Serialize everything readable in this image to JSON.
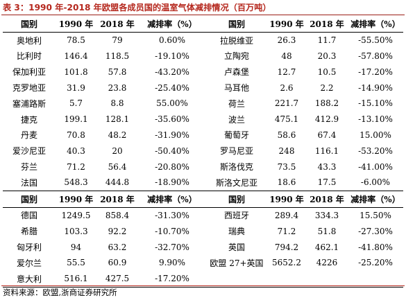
{
  "title": "表 3：1990 年-2018 年欧盟各成员国的温室气体减排情况（百万吨）",
  "headers": [
    "国别",
    "1990 年",
    "2018 年",
    "减排率（%）"
  ],
  "rows": [
    {
      "left": [
        "奥地利",
        "78.5",
        "79",
        "0.60%"
      ],
      "right": [
        "拉脱维亚",
        "26.3",
        "11.7",
        "-55.50%"
      ]
    },
    {
      "left": [
        "比利时",
        "146.4",
        "118.5",
        "-19.10%"
      ],
      "right": [
        "立陶宛",
        "48",
        "20.3",
        "-57.80%"
      ]
    },
    {
      "left": [
        "保加利亚",
        "101.8",
        "57.8",
        "-43.20%"
      ],
      "right": [
        "卢森堡",
        "12.7",
        "10.5",
        "-17.20%"
      ]
    },
    {
      "left": [
        "克罗地亚",
        "31.9",
        "23.8",
        "-25.40%"
      ],
      "right": [
        "马耳他",
        "2.6",
        "2.2",
        "-14.90%"
      ]
    },
    {
      "left": [
        "塞浦路斯",
        "5.7",
        "8.8",
        "55.00%"
      ],
      "right": [
        "荷兰",
        "221.7",
        "188.2",
        "-15.10%"
      ]
    },
    {
      "left": [
        "捷克",
        "199.1",
        "128.1",
        "-35.60%"
      ],
      "right": [
        "波兰",
        "475.1",
        "412.9",
        "-13.10%"
      ]
    },
    {
      "left": [
        "丹麦",
        "70.8",
        "48.2",
        "-31.90%"
      ],
      "right": [
        "葡萄牙",
        "58.6",
        "67.4",
        "15.00%"
      ]
    },
    {
      "left": [
        "爱沙尼亚",
        "40.3",
        "20",
        "-50.40%"
      ],
      "right": [
        "罗马尼亚",
        "248",
        "116.1",
        "-53.20%"
      ]
    },
    {
      "left": [
        "芬兰",
        "71.2",
        "56.4",
        "-20.80%"
      ],
      "right": [
        "斯洛伐克",
        "73.5",
        "43.3",
        "-41.00%"
      ]
    },
    {
      "left": [
        "法国",
        "548.3",
        "444.8",
        "-18.90%"
      ],
      "right": [
        "斯洛文尼亚",
        "18.6",
        "17.5",
        "-6.00%"
      ]
    },
    {
      "subhead": true
    },
    {
      "left": [
        "德国",
        "1249.5",
        "858.4",
        "-31.30%"
      ],
      "right": [
        "西班牙",
        "289.4",
        "334.3",
        "15.50%"
      ]
    },
    {
      "left": [
        "希腊",
        "103.3",
        "92.2",
        "-10.70%"
      ],
      "right": [
        "瑞典",
        "71.2",
        "51.8",
        "-27.30%"
      ]
    },
    {
      "left": [
        "匈牙利",
        "94",
        "63.2",
        "-32.70%"
      ],
      "right": [
        "英国",
        "794.2",
        "462.1",
        "-41.80%"
      ]
    },
    {
      "left": [
        "爱尔兰",
        "55.5",
        "60.9",
        "9.90%"
      ],
      "right": [
        "欧盟 27+英国",
        "5652.2",
        "4226",
        "-25.20%"
      ]
    },
    {
      "left": [
        "意大利",
        "516.1",
        "427.5",
        "-17.20%"
      ],
      "right": [
        "",
        "",
        "",
        ""
      ]
    }
  ],
  "source": "资料来源：欧盟,浙商证券研究所",
  "colors": {
    "title": "#b5271d",
    "rule": "#9b1d16"
  }
}
